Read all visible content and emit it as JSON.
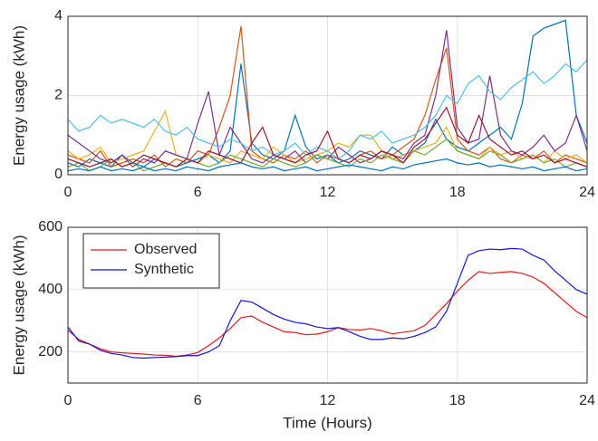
{
  "chart_data": [
    {
      "type": "line",
      "ylabel": "Energy usage (kWh)",
      "grid": true,
      "x": [
        0,
        0.5,
        1,
        1.5,
        2,
        2.5,
        3,
        3.5,
        4,
        4.5,
        5,
        5.5,
        6,
        6.5,
        7,
        7.5,
        8,
        8.5,
        9,
        9.5,
        10,
        10.5,
        11,
        11.5,
        12,
        12.5,
        13,
        13.5,
        14,
        14.5,
        15,
        15.5,
        16,
        16.5,
        17,
        17.5,
        18,
        18.5,
        19,
        19.5,
        20,
        20.5,
        21,
        21.5,
        22,
        22.5,
        23,
        23.5,
        24
      ],
      "xlim": [
        0,
        24
      ],
      "xticks": [
        0,
        6,
        12,
        18,
        24
      ],
      "ylim": [
        0,
        4
      ],
      "yticks": [
        0,
        2,
        4
      ],
      "series": [
        {
          "color": "#0072BD",
          "values": [
            0.3,
            0.2,
            0.4,
            0.3,
            0.2,
            0.5,
            0.3,
            0.2,
            0.4,
            0.3,
            0.2,
            0.3,
            0.4,
            0.5,
            0.3,
            0.6,
            2.8,
            0.8,
            0.5,
            0.4,
            0.6,
            1.5,
            0.7,
            0.4,
            0.5,
            0.3,
            0.4,
            0.6,
            0.5,
            0.4,
            0.7,
            0.5,
            0.6,
            0.8,
            1.4,
            0.9,
            0.7,
            0.6,
            0.8,
            1.0,
            1.2,
            0.9,
            1.8,
            3.5,
            3.7,
            3.8,
            3.9,
            1.5,
            0.8
          ]
        },
        {
          "color": "#D95319",
          "values": [
            0.5,
            0.4,
            0.3,
            0.6,
            0.2,
            0.3,
            0.4,
            0.3,
            0.5,
            0.2,
            0.4,
            0.3,
            0.6,
            0.5,
            1.2,
            2.0,
            3.75,
            0.6,
            0.4,
            0.3,
            0.5,
            0.4,
            0.6,
            0.3,
            0.5,
            0.4,
            0.3,
            0.5,
            0.6,
            0.4,
            0.5,
            0.7,
            0.9,
            1.5,
            2.4,
            3.2,
            0.9,
            0.6,
            0.5,
            0.7,
            0.4,
            0.3,
            0.5,
            0.4,
            0.6,
            0.3,
            0.5,
            0.4,
            0.3
          ]
        },
        {
          "color": "#EDB120",
          "values": [
            0.6,
            0.4,
            0.5,
            0.7,
            0.3,
            0.4,
            0.5,
            0.6,
            1.1,
            1.6,
            0.5,
            0.4,
            0.3,
            0.5,
            0.4,
            0.3,
            0.6,
            0.5,
            0.4,
            0.7,
            0.5,
            0.3,
            0.4,
            0.5,
            0.6,
            0.8,
            0.7,
            1.0,
            1.0,
            0.6,
            0.4,
            0.5,
            0.6,
            0.7,
            0.8,
            1.2,
            0.6,
            0.5,
            0.4,
            0.7,
            0.5,
            0.6,
            0.4,
            0.5,
            0.3,
            0.6,
            0.4,
            0.5,
            0.3
          ]
        },
        {
          "color": "#7E2F8E",
          "values": [
            1.0,
            0.8,
            0.6,
            0.4,
            0.3,
            0.5,
            0.2,
            0.4,
            0.3,
            0.6,
            0.5,
            0.4,
            1.3,
            2.1,
            0.5,
            1.2,
            0.8,
            0.4,
            0.3,
            0.5,
            0.4,
            0.6,
            0.3,
            0.5,
            0.4,
            0.7,
            0.5,
            0.3,
            0.4,
            0.6,
            0.5,
            0.4,
            0.8,
            1.0,
            2.0,
            3.65,
            1.2,
            0.8,
            0.9,
            2.5,
            1.0,
            0.6,
            0.5,
            0.7,
            1.0,
            0.6,
            0.8,
            1.5,
            0.6
          ]
        },
        {
          "color": "#77AC30",
          "values": [
            0.2,
            0.3,
            0.1,
            0.2,
            0.4,
            0.2,
            0.3,
            0.1,
            0.2,
            0.3,
            0.2,
            0.4,
            0.3,
            0.2,
            0.3,
            0.5,
            0.4,
            0.3,
            0.2,
            0.4,
            0.3,
            0.2,
            0.3,
            0.5,
            0.4,
            0.3,
            0.2,
            0.4,
            0.3,
            0.5,
            0.4,
            0.3,
            0.6,
            0.5,
            0.7,
            0.9,
            0.6,
            0.5,
            0.4,
            0.6,
            0.5,
            0.3,
            0.4,
            0.5,
            0.3,
            0.4,
            0.2,
            0.3,
            0.2
          ]
        },
        {
          "color": "#4DBEEE",
          "values": [
            1.4,
            1.1,
            1.2,
            1.5,
            1.3,
            1.4,
            1.3,
            1.2,
            1.4,
            1.1,
            1.0,
            1.2,
            0.9,
            0.8,
            0.7,
            0.9,
            0.8,
            0.6,
            0.7,
            0.5,
            0.6,
            0.8,
            0.5,
            0.7,
            0.6,
            0.4,
            0.6,
            1.0,
            0.9,
            1.1,
            0.8,
            0.9,
            1.0,
            1.2,
            1.5,
            2.0,
            1.8,
            2.3,
            2.5,
            2.1,
            1.9,
            2.2,
            2.4,
            2.6,
            2.3,
            2.5,
            2.8,
            2.6,
            2.9
          ]
        },
        {
          "color": "#A2142F",
          "values": [
            0.4,
            0.3,
            0.2,
            0.3,
            0.4,
            0.2,
            0.3,
            0.5,
            0.4,
            0.3,
            0.2,
            0.4,
            0.3,
            0.6,
            0.5,
            0.4,
            0.3,
            0.8,
            1.2,
            0.5,
            0.4,
            0.3,
            0.5,
            0.6,
            1.1,
            0.4,
            0.3,
            0.5,
            0.4,
            0.6,
            0.5,
            0.3,
            0.7,
            0.9,
            1.3,
            1.7,
            1.0,
            0.8,
            1.5,
            0.9,
            0.7,
            0.5,
            0.6,
            0.4,
            0.5,
            0.3,
            0.4,
            0.3,
            0.2
          ]
        },
        {
          "color": "#0072BD",
          "values": [
            0.1,
            0.15,
            0.1,
            0.2,
            0.1,
            0.15,
            0.1,
            0.2,
            0.1,
            0.15,
            0.1,
            0.2,
            0.15,
            0.1,
            0.2,
            0.25,
            0.3,
            0.2,
            0.15,
            0.2,
            0.1,
            0.15,
            0.2,
            0.1,
            0.15,
            0.2,
            0.25,
            0.2,
            0.15,
            0.1,
            0.2,
            0.15,
            0.25,
            0.3,
            0.35,
            0.4,
            0.3,
            0.25,
            0.3,
            0.2,
            0.25,
            0.2,
            0.15,
            0.2,
            0.1,
            0.15,
            0.2,
            0.1,
            0.15
          ]
        }
      ]
    },
    {
      "type": "line",
      "ylabel": "Energy usage (kWh)",
      "xlabel": "Time (Hours)",
      "grid": true,
      "legend": "upper-left",
      "x": [
        0,
        0.5,
        1,
        1.5,
        2,
        2.5,
        3,
        3.5,
        4,
        4.5,
        5,
        5.5,
        6,
        6.5,
        7,
        7.5,
        8,
        8.5,
        9,
        9.5,
        10,
        10.5,
        11,
        11.5,
        12,
        12.5,
        13,
        13.5,
        14,
        14.5,
        15,
        15.5,
        16,
        16.5,
        17,
        17.5,
        18,
        18.5,
        19,
        19.5,
        20,
        20.5,
        21,
        21.5,
        22,
        22.5,
        23,
        23.5,
        24
      ],
      "xlim": [
        0,
        24
      ],
      "xticks": [
        0,
        6,
        12,
        18,
        24
      ],
      "ylim": [
        100,
        600
      ],
      "yticks": [
        200,
        400,
        600
      ],
      "series": [
        {
          "name": "Observed",
          "color": "#e41a1c",
          "values": [
            270,
            240,
            225,
            210,
            200,
            197,
            195,
            193,
            190,
            189,
            186,
            190,
            198,
            220,
            245,
            275,
            310,
            315,
            295,
            280,
            265,
            262,
            255,
            257,
            265,
            278,
            272,
            270,
            275,
            268,
            258,
            263,
            268,
            285,
            320,
            355,
            395,
            430,
            458,
            452,
            455,
            458,
            452,
            440,
            420,
            390,
            360,
            330,
            310
          ]
        },
        {
          "name": "Synthetic",
          "color": "#1515d9",
          "values": [
            280,
            235,
            225,
            205,
            195,
            190,
            182,
            180,
            182,
            183,
            185,
            188,
            188,
            200,
            220,
            300,
            365,
            360,
            340,
            320,
            305,
            295,
            290,
            280,
            275,
            278,
            265,
            250,
            240,
            240,
            245,
            242,
            250,
            262,
            280,
            330,
            420,
            510,
            525,
            530,
            528,
            532,
            530,
            510,
            495,
            460,
            430,
            400,
            385
          ]
        }
      ]
    }
  ]
}
